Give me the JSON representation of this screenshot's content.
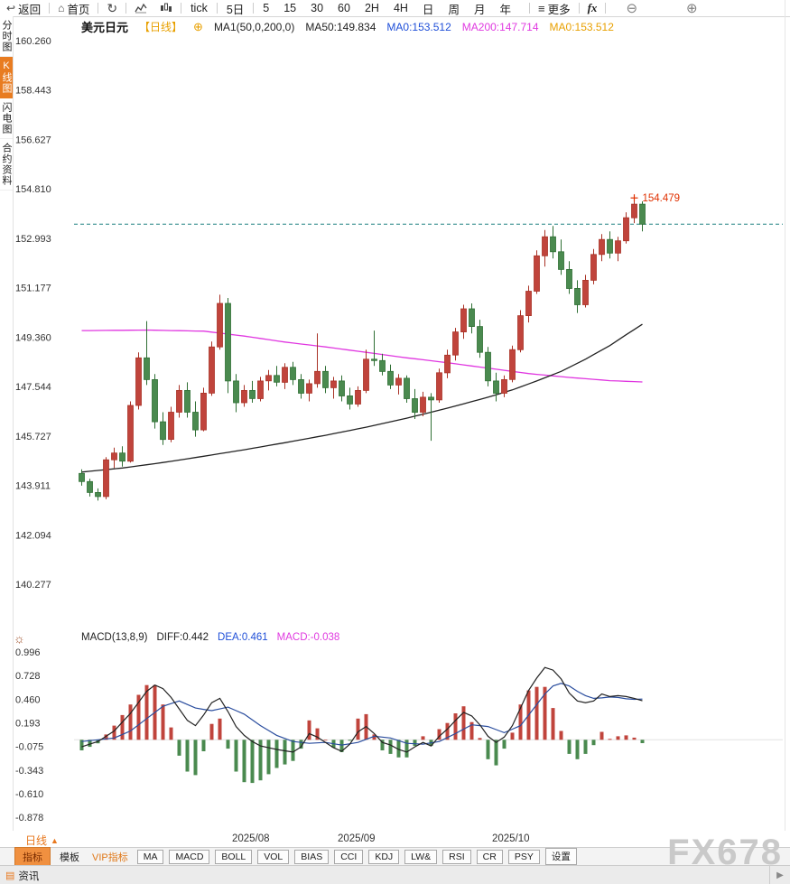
{
  "toolbar": {
    "back_label": "返回",
    "home_label": "首页",
    "intervals": [
      "tick",
      "5日",
      "5",
      "15",
      "30",
      "60",
      "2H",
      "4H",
      "日",
      "周",
      "月",
      "年"
    ],
    "more_label": "更多",
    "fx_label": "fx",
    "zoom_out": "⊖",
    "zoom_in": "⊕"
  },
  "sidebar": {
    "items": [
      {
        "label": "分时图",
        "active": false
      },
      {
        "label": "K线图",
        "active": true
      },
      {
        "label": "闪电图",
        "active": false
      },
      {
        "label": "合约资料",
        "active": false
      }
    ]
  },
  "chart_header": {
    "symbol": "美元日元",
    "period": "【日线】",
    "add_icon": "⊕",
    "ma_settings": "MA1(50,0,200,0)",
    "ma50_text": "MA50:149.834",
    "ma0_blue_text": "MA0:153.512",
    "ma200_text": "MA200:147.714",
    "ma0_orange_text": "MA0:153.512"
  },
  "macd_header": {
    "title": "MACD(13,8,9)",
    "diff_text": "DIFF:0.442",
    "dea_text": "DEA:0.461",
    "macd_text": "MACD:-0.038"
  },
  "bottom": {
    "period_selector": "日线",
    "period_arrow": "▲",
    "tabs": [
      "指标",
      "模板",
      "VIP指标",
      "MA",
      "MACD",
      "BOLL",
      "VOL",
      "BIAS",
      "CCI",
      "KDJ",
      "LW&",
      "RSI",
      "CR",
      "PSY",
      "设置"
    ],
    "news_label": "资讯",
    "expand_arrow": "▶",
    "watermark": "FX678"
  },
  "chart_data": {
    "type": "candlestick_with_macd",
    "title": "美元日元 日线 (USD/JPY Daily)",
    "y_axis_labels": [
      "160.260",
      "158.443",
      "156.627",
      "154.810",
      "152.993",
      "151.177",
      "149.360",
      "147.544",
      "145.727",
      "143.911",
      "142.094",
      "140.277"
    ],
    "macd_axis_labels": [
      "0.996",
      "0.728",
      "0.460",
      "0.193",
      "-0.075",
      "-0.343",
      "-0.610",
      "-0.878"
    ],
    "x_labels": [
      {
        "label": "2025/08",
        "index": 21
      },
      {
        "label": "2025/09",
        "index": 34
      },
      {
        "label": "2025/10",
        "index": 53
      }
    ],
    "last_price": 153.512,
    "high_marker": {
      "price": 154.479,
      "price_text": "154.479",
      "index": 68
    },
    "candles": [
      [
        144.35,
        144.5,
        143.9,
        144.05
      ],
      [
        144.05,
        144.15,
        143.5,
        143.65
      ],
      [
        143.65,
        143.8,
        143.35,
        143.5
      ],
      [
        143.5,
        144.95,
        143.4,
        144.85
      ],
      [
        144.85,
        145.3,
        144.55,
        145.1
      ],
      [
        145.1,
        145.35,
        144.6,
        144.8
      ],
      [
        144.8,
        147.0,
        144.75,
        146.85
      ],
      [
        146.85,
        148.8,
        146.7,
        148.6
      ],
      [
        148.6,
        149.95,
        147.6,
        147.8
      ],
      [
        147.8,
        148.0,
        146.0,
        146.25
      ],
      [
        146.25,
        146.6,
        145.4,
        145.6
      ],
      [
        145.6,
        146.8,
        145.5,
        146.6
      ],
      [
        146.6,
        147.6,
        146.4,
        147.4
      ],
      [
        147.4,
        147.7,
        146.4,
        146.6
      ],
      [
        146.6,
        147.0,
        145.7,
        145.95
      ],
      [
        145.95,
        147.5,
        145.9,
        147.3
      ],
      [
        147.3,
        149.2,
        147.2,
        149.0
      ],
      [
        149.0,
        150.92,
        148.9,
        150.6
      ],
      [
        150.6,
        150.8,
        147.3,
        147.75
      ],
      [
        147.75,
        148.0,
        146.6,
        146.95
      ],
      [
        146.95,
        147.6,
        146.8,
        147.4
      ],
      [
        147.4,
        147.75,
        146.95,
        147.1
      ],
      [
        147.1,
        147.9,
        147.0,
        147.75
      ],
      [
        147.75,
        148.15,
        147.4,
        147.95
      ],
      [
        147.95,
        148.3,
        147.55,
        147.7
      ],
      [
        147.7,
        148.4,
        147.45,
        148.25
      ],
      [
        148.25,
        148.45,
        147.6,
        147.8
      ],
      [
        147.8,
        148.0,
        147.1,
        147.3
      ],
      [
        147.3,
        147.8,
        147.0,
        147.65
      ],
      [
        147.65,
        149.5,
        147.5,
        148.1
      ],
      [
        148.1,
        148.3,
        147.3,
        147.5
      ],
      [
        147.5,
        147.9,
        147.1,
        147.75
      ],
      [
        147.75,
        147.95,
        147.0,
        147.2
      ],
      [
        147.2,
        147.5,
        146.7,
        146.9
      ],
      [
        146.9,
        147.55,
        146.8,
        147.4
      ],
      [
        147.4,
        148.9,
        147.3,
        148.55
      ],
      [
        148.55,
        149.6,
        148.3,
        148.5
      ],
      [
        148.5,
        148.75,
        147.95,
        148.1
      ],
      [
        148.1,
        148.35,
        147.45,
        147.6
      ],
      [
        147.6,
        148.0,
        147.25,
        147.85
      ],
      [
        147.85,
        147.95,
        146.95,
        147.1
      ],
      [
        147.1,
        147.45,
        146.35,
        146.6
      ],
      [
        146.6,
        147.35,
        146.45,
        147.15
      ],
      [
        147.15,
        147.3,
        145.55,
        147.05
      ],
      [
        147.05,
        148.2,
        146.95,
        148.05
      ],
      [
        148.05,
        148.9,
        147.85,
        148.7
      ],
      [
        148.7,
        149.7,
        148.5,
        149.55
      ],
      [
        149.55,
        150.55,
        149.3,
        150.4
      ],
      [
        150.4,
        150.6,
        149.5,
        149.75
      ],
      [
        149.75,
        150.0,
        148.6,
        148.8
      ],
      [
        148.8,
        149.0,
        147.55,
        147.75
      ],
      [
        147.75,
        148.05,
        147.0,
        147.3
      ],
      [
        147.3,
        147.95,
        147.15,
        147.8
      ],
      [
        147.8,
        149.05,
        147.7,
        148.9
      ],
      [
        148.9,
        150.35,
        148.8,
        150.15
      ],
      [
        150.15,
        151.25,
        149.9,
        151.05
      ],
      [
        151.05,
        152.55,
        150.95,
        152.35
      ],
      [
        152.35,
        153.3,
        151.95,
        153.05
      ],
      [
        153.05,
        153.45,
        152.25,
        152.5
      ],
      [
        152.5,
        152.95,
        151.65,
        151.85
      ],
      [
        151.85,
        152.15,
        150.95,
        151.15
      ],
      [
        151.15,
        151.45,
        150.25,
        150.55
      ],
      [
        150.55,
        151.65,
        150.45,
        151.45
      ],
      [
        151.45,
        152.6,
        151.3,
        152.4
      ],
      [
        152.4,
        153.15,
        152.15,
        152.95
      ],
      [
        152.95,
        153.25,
        152.25,
        152.45
      ],
      [
        152.45,
        153.05,
        152.15,
        152.9
      ],
      [
        152.9,
        153.95,
        152.8,
        153.75
      ],
      [
        153.75,
        154.479,
        153.55,
        154.25
      ],
      [
        154.25,
        154.35,
        153.25,
        153.512
      ]
    ],
    "ma50_points": [
      [
        0,
        144.4
      ],
      [
        5,
        144.55
      ],
      [
        10,
        144.75
      ],
      [
        15,
        144.98
      ],
      [
        20,
        145.22
      ],
      [
        25,
        145.48
      ],
      [
        30,
        145.75
      ],
      [
        35,
        146.05
      ],
      [
        40,
        146.38
      ],
      [
        45,
        146.75
      ],
      [
        50,
        147.15
      ],
      [
        53,
        147.42
      ],
      [
        56,
        147.75
      ],
      [
        59,
        148.1
      ],
      [
        62,
        148.55
      ],
      [
        65,
        149.05
      ],
      [
        67,
        149.45
      ],
      [
        69,
        149.834
      ]
    ],
    "ma200_points": [
      [
        0,
        149.6
      ],
      [
        8,
        149.62
      ],
      [
        15,
        149.58
      ],
      [
        20,
        149.4
      ],
      [
        25,
        149.18
      ],
      [
        30,
        149.0
      ],
      [
        35,
        148.8
      ],
      [
        40,
        148.6
      ],
      [
        45,
        148.42
      ],
      [
        50,
        148.22
      ],
      [
        55,
        148.02
      ],
      [
        60,
        147.88
      ],
      [
        65,
        147.76
      ],
      [
        69,
        147.714
      ]
    ],
    "diff_points": [
      [
        0,
        -0.08
      ],
      [
        2,
        -0.02
      ],
      [
        4,
        0.1
      ],
      [
        6,
        0.3
      ],
      [
        8,
        0.55
      ],
      [
        9,
        0.62
      ],
      [
        10,
        0.58
      ],
      [
        11,
        0.48
      ],
      [
        12,
        0.35
      ],
      [
        13,
        0.22
      ],
      [
        14,
        0.16
      ],
      [
        15,
        0.28
      ],
      [
        16,
        0.42
      ],
      [
        17,
        0.47
      ],
      [
        18,
        0.32
      ],
      [
        19,
        0.15
      ],
      [
        20,
        0.05
      ],
      [
        21,
        -0.02
      ],
      [
        22,
        -0.07
      ],
      [
        24,
        -0.11
      ],
      [
        26,
        -0.14
      ],
      [
        27,
        -0.08
      ],
      [
        28,
        0.07
      ],
      [
        29,
        0.03
      ],
      [
        30,
        -0.03
      ],
      [
        31,
        -0.09
      ],
      [
        32,
        -0.13
      ],
      [
        33,
        -0.05
      ],
      [
        34,
        0.09
      ],
      [
        35,
        0.15
      ],
      [
        36,
        0.07
      ],
      [
        37,
        -0.03
      ],
      [
        38,
        -0.06
      ],
      [
        39,
        -0.11
      ],
      [
        40,
        -0.14
      ],
      [
        41,
        -0.08
      ],
      [
        42,
        -0.03
      ],
      [
        43,
        -0.07
      ],
      [
        44,
        0.04
      ],
      [
        45,
        0.12
      ],
      [
        46,
        0.22
      ],
      [
        47,
        0.31
      ],
      [
        48,
        0.27
      ],
      [
        49,
        0.17
      ],
      [
        50,
        0.04
      ],
      [
        51,
        -0.03
      ],
      [
        52,
        0.03
      ],
      [
        53,
        0.16
      ],
      [
        54,
        0.36
      ],
      [
        55,
        0.56
      ],
      [
        56,
        0.7
      ],
      [
        57,
        0.82
      ],
      [
        58,
        0.79
      ],
      [
        59,
        0.69
      ],
      [
        60,
        0.53
      ],
      [
        61,
        0.44
      ],
      [
        62,
        0.42
      ],
      [
        63,
        0.44
      ],
      [
        64,
        0.52
      ],
      [
        65,
        0.49
      ],
      [
        66,
        0.5
      ],
      [
        67,
        0.49
      ],
      [
        68,
        0.47
      ],
      [
        69,
        0.442
      ]
    ],
    "dea_points": [
      [
        0,
        -0.02
      ],
      [
        4,
        0.02
      ],
      [
        6,
        0.1
      ],
      [
        8,
        0.24
      ],
      [
        10,
        0.38
      ],
      [
        12,
        0.44
      ],
      [
        14,
        0.36
      ],
      [
        16,
        0.33
      ],
      [
        18,
        0.37
      ],
      [
        20,
        0.29
      ],
      [
        22,
        0.16
      ],
      [
        24,
        0.05
      ],
      [
        26,
        -0.02
      ],
      [
        28,
        -0.04
      ],
      [
        30,
        -0.03
      ],
      [
        32,
        -0.06
      ],
      [
        34,
        -0.03
      ],
      [
        36,
        0.04
      ],
      [
        38,
        0.02
      ],
      [
        40,
        -0.04
      ],
      [
        42,
        -0.05
      ],
      [
        44,
        -0.02
      ],
      [
        46,
        0.07
      ],
      [
        48,
        0.17
      ],
      [
        50,
        0.15
      ],
      [
        52,
        0.08
      ],
      [
        54,
        0.16
      ],
      [
        56,
        0.4
      ],
      [
        57,
        0.52
      ],
      [
        58,
        0.61
      ],
      [
        59,
        0.64
      ],
      [
        60,
        0.61
      ],
      [
        61,
        0.55
      ],
      [
        62,
        0.5
      ],
      [
        63,
        0.47
      ],
      [
        64,
        0.475
      ],
      [
        65,
        0.485
      ],
      [
        66,
        0.48
      ],
      [
        67,
        0.465
      ],
      [
        68,
        0.458
      ],
      [
        69,
        0.461
      ]
    ],
    "colors": {
      "up": "#c0443c",
      "up_stroke": "#a93226",
      "down": "#4a8a4f",
      "down_stroke": "#2f6f34",
      "ma50": "#222222",
      "ma200": "#e036e0",
      "diff": "#222222",
      "dea": "#2a4d9e",
      "hist_up": "#c0443c",
      "hist_down": "#4a8a4f",
      "last_line": "#1f8080",
      "marker": "#e03000"
    }
  }
}
